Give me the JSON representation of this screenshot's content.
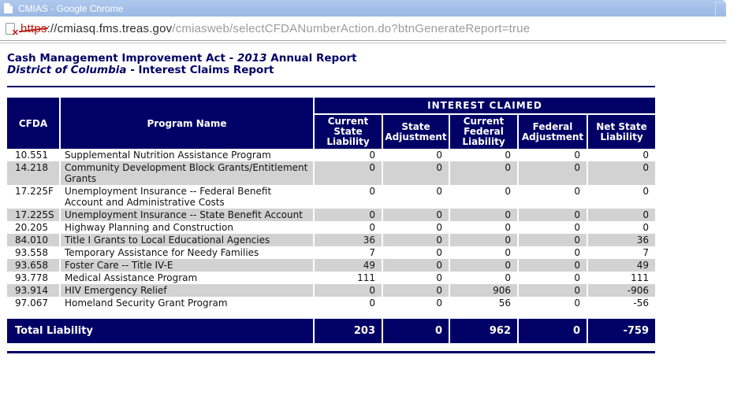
{
  "window": {
    "title": "CMIAS - Google Chrome"
  },
  "address_bar": {
    "scheme": "https",
    "host_part": "://cmiasq.fms.treas.gov",
    "path_part": "/cmiasweb/selectCFDANumberAction.do?btnGenerateReport=true"
  },
  "report": {
    "title_prefix": "Cash Management Improvement Act - ",
    "title_year": "2013",
    "title_suffix": " Annual Report",
    "subtitle_state": "District of Columbia",
    "subtitle_suffix": " - Interest Claims Report"
  },
  "table": {
    "columns": {
      "cfda": "CFDA",
      "program": "Program Name",
      "group": "INTEREST CLAIMED"
    },
    "sub_headers": [
      "Current State Liability",
      "State Adjustment",
      "Current Federal Liability",
      "Federal Adjustment",
      "Net State Liability"
    ],
    "rows": [
      {
        "cfda": "10.551",
        "program": "Supplemental Nutrition Assistance Program",
        "values": [
          "0",
          "0",
          "0",
          "0",
          "0"
        ]
      },
      {
        "cfda": "14.218",
        "program": "Community Development Block Grants/Entitlement Grants",
        "values": [
          "0",
          "0",
          "0",
          "0",
          "0"
        ]
      },
      {
        "cfda": "17.225F",
        "program": "Unemployment Insurance -- Federal Benefit Account and Administrative Costs",
        "values": [
          "0",
          "0",
          "0",
          "0",
          "0"
        ]
      },
      {
        "cfda": "17.225S",
        "program": "Unemployment Insurance -- State Benefit Account",
        "values": [
          "0",
          "0",
          "0",
          "0",
          "0"
        ]
      },
      {
        "cfda": "20.205",
        "program": "Highway Planning and Construction",
        "values": [
          "0",
          "0",
          "0",
          "0",
          "0"
        ]
      },
      {
        "cfda": "84.010",
        "program": "Title I Grants to Local Educational Agencies",
        "values": [
          "36",
          "0",
          "0",
          "0",
          "36"
        ]
      },
      {
        "cfda": "93.558",
        "program": "Temporary Assistance for Needy Families",
        "values": [
          "7",
          "0",
          "0",
          "0",
          "7"
        ]
      },
      {
        "cfda": "93.658",
        "program": "Foster Care -- Title IV-E",
        "values": [
          "49",
          "0",
          "0",
          "0",
          "49"
        ]
      },
      {
        "cfda": "93.778",
        "program": "Medical Assistance Program",
        "values": [
          "111",
          "0",
          "0",
          "0",
          "111"
        ]
      },
      {
        "cfda": "93.914",
        "program": "HIV Emergency Relief",
        "values": [
          "0",
          "0",
          "906",
          "0",
          "-906"
        ]
      },
      {
        "cfda": "97.067",
        "program": "Homeland Security Grant Program",
        "values": [
          "0",
          "0",
          "56",
          "0",
          "-56"
        ]
      }
    ],
    "total": {
      "label": "Total Liability",
      "values": [
        "203",
        "0",
        "962",
        "0",
        "-759"
      ]
    }
  },
  "colors": {
    "navy": "#000066",
    "titlebar_blue": "#a5c0e8",
    "stripe_gray": "#d2d2d2",
    "scheme_red": "#b81c16"
  }
}
